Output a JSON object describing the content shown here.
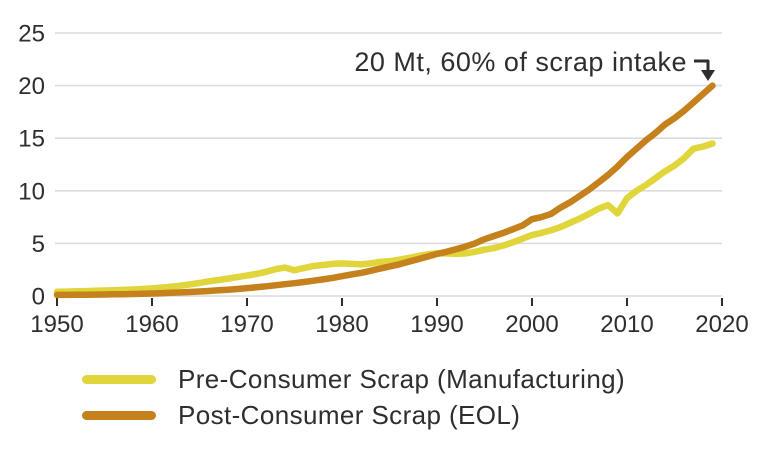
{
  "colors": {
    "background": "#ffffff",
    "grid": "#dcdcdc",
    "text": "#2e2e2e",
    "annotation_arrow": "#2e2e2e"
  },
  "chart_data": {
    "type": "line",
    "title": "",
    "xlabel": "",
    "ylabel": "",
    "xlim": [
      1950,
      2020
    ],
    "ylim": [
      0,
      25
    ],
    "xticks": [
      1950,
      1960,
      1970,
      1980,
      1990,
      2000,
      2010,
      2020
    ],
    "yticks": [
      0,
      5,
      10,
      15,
      20,
      25
    ],
    "grid": "horizontal",
    "legend_position": "bottom-left",
    "annotation": {
      "text": "20 Mt, 60% of scrap intake",
      "points_to": {
        "x": 2019,
        "y": 20
      }
    },
    "x": [
      1950,
      1951,
      1952,
      1953,
      1954,
      1955,
      1956,
      1957,
      1958,
      1959,
      1960,
      1961,
      1962,
      1963,
      1964,
      1965,
      1966,
      1967,
      1968,
      1969,
      1970,
      1971,
      1972,
      1973,
      1974,
      1975,
      1976,
      1977,
      1978,
      1979,
      1980,
      1981,
      1982,
      1983,
      1984,
      1985,
      1986,
      1987,
      1988,
      1989,
      1990,
      1991,
      1992,
      1993,
      1994,
      1995,
      1996,
      1997,
      1998,
      1999,
      2000,
      2001,
      2002,
      2003,
      2004,
      2005,
      2006,
      2007,
      2008,
      2009,
      2010,
      2011,
      2012,
      2013,
      2014,
      2015,
      2016,
      2017,
      2018,
      2019
    ],
    "series": [
      {
        "name": "Pre-Consumer Scrap (Manufacturing)",
        "color": "#e1d53c",
        "values": [
          0.4,
          0.42,
          0.45,
          0.47,
          0.5,
          0.52,
          0.55,
          0.58,
          0.62,
          0.67,
          0.72,
          0.8,
          0.88,
          0.98,
          1.1,
          1.25,
          1.4,
          1.52,
          1.65,
          1.8,
          1.95,
          2.1,
          2.3,
          2.55,
          2.7,
          2.45,
          2.65,
          2.85,
          2.95,
          3.05,
          3.1,
          3.05,
          3.0,
          3.1,
          3.25,
          3.3,
          3.45,
          3.6,
          3.8,
          3.95,
          4.05,
          4.05,
          4.0,
          4.05,
          4.2,
          4.4,
          4.55,
          4.8,
          5.1,
          5.45,
          5.8,
          6.0,
          6.25,
          6.55,
          6.95,
          7.35,
          7.8,
          8.3,
          8.65,
          7.85,
          9.3,
          10.0,
          10.55,
          11.2,
          11.85,
          12.4,
          13.1,
          14.0,
          14.2,
          14.5
        ]
      },
      {
        "name": "Post-Consumer Scrap (EOL)",
        "color": "#c5811b",
        "values": [
          0.1,
          0.1,
          0.11,
          0.12,
          0.13,
          0.14,
          0.16,
          0.17,
          0.19,
          0.21,
          0.24,
          0.27,
          0.3,
          0.34,
          0.38,
          0.43,
          0.48,
          0.54,
          0.6,
          0.67,
          0.75,
          0.83,
          0.92,
          1.02,
          1.12,
          1.22,
          1.33,
          1.45,
          1.58,
          1.72,
          1.88,
          2.05,
          2.2,
          2.4,
          2.6,
          2.8,
          3.0,
          3.25,
          3.5,
          3.75,
          4.0,
          4.2,
          4.45,
          4.7,
          5.0,
          5.4,
          5.7,
          6.0,
          6.35,
          6.7,
          7.3,
          7.5,
          7.8,
          8.4,
          8.9,
          9.5,
          10.1,
          10.8,
          11.5,
          12.3,
          13.2,
          14.0,
          14.8,
          15.5,
          16.3,
          16.9,
          17.6,
          18.4,
          19.2,
          20.0
        ]
      }
    ]
  }
}
